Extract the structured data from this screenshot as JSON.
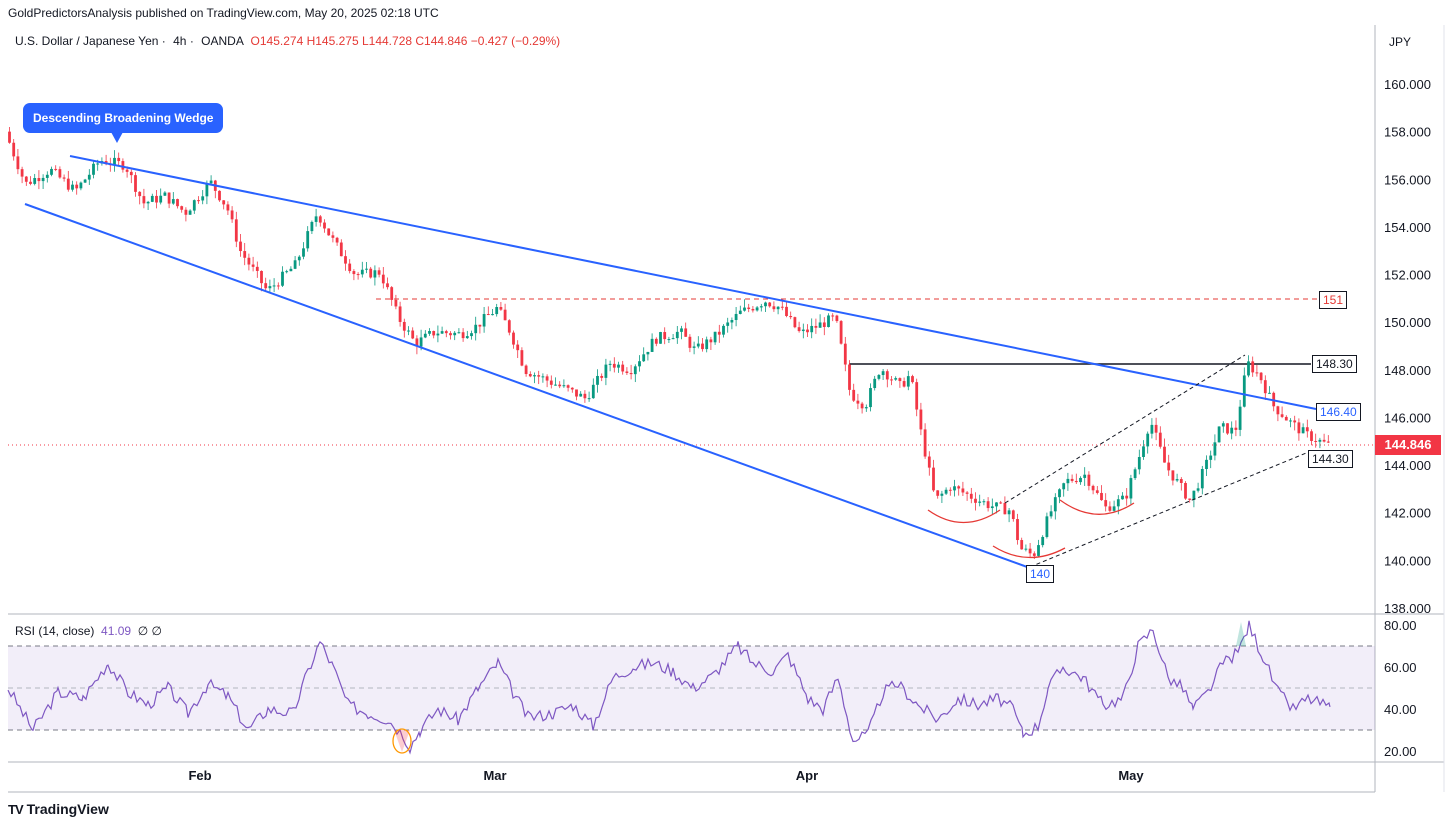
{
  "header": {
    "text": "GoldPredictorsAnalysis published on TradingView.com, May 20, 2025 02:18 UTC"
  },
  "symbol": {
    "name": "U.S. Dollar / Japanese Yen",
    "interval": "4h",
    "exchange": "OANDA",
    "open": "O145.274",
    "high": "H145.275",
    "low": "L144.728",
    "close": "C144.846",
    "change": "−0.427 (−0.29%)"
  },
  "currency": "JPY",
  "current_price": "144.846",
  "annotations": {
    "callout": "Descending Broadening Wedge",
    "level_151": "151",
    "level_148": "148.30",
    "level_146": "146.40",
    "level_144": "144.30",
    "level_140": "140"
  },
  "rsi": {
    "title": "RSI (14, close)",
    "value": "41.09",
    "extra": "∅ ∅"
  },
  "footer": {
    "logo": "TV",
    "brand": "TradingView"
  },
  "colors": {
    "up": "#089981",
    "down": "#f23645",
    "wedge": "#2962ff",
    "rsi_line": "#7e57c2",
    "resistance": "#e53935"
  },
  "chart_data": [
    {
      "type": "candlestick",
      "title": "U.S. Dollar / Japanese Yen · 4h · OANDA",
      "y_axis_ticks": [
        "138.000",
        "140.000",
        "142.000",
        "144.000",
        "146.000",
        "148.000",
        "150.000",
        "152.000",
        "154.000",
        "156.000",
        "158.000",
        "160.000"
      ],
      "x_axis_ticks": [
        "Feb",
        "Mar",
        "Apr",
        "May"
      ],
      "ylim": [
        137.9,
        161.5
      ],
      "price_path": [
        [
          0,
          158.0
        ],
        [
          20,
          155.8
        ],
        [
          45,
          156.4
        ],
        [
          70,
          155.5
        ],
        [
          95,
          156.8
        ],
        [
          120,
          156.6
        ],
        [
          138,
          155.0
        ],
        [
          160,
          155.3
        ],
        [
          180,
          154.6
        ],
        [
          205,
          155.9
        ],
        [
          222,
          154.8
        ],
        [
          235,
          153.0
        ],
        [
          262,
          151.3
        ],
        [
          290,
          152.4
        ],
        [
          312,
          154.6
        ],
        [
          325,
          153.6
        ],
        [
          350,
          152.0
        ],
        [
          375,
          152.1
        ],
        [
          393,
          150.2
        ],
        [
          410,
          149.1
        ],
        [
          430,
          149.6
        ],
        [
          455,
          149.5
        ],
        [
          470,
          149.8
        ],
        [
          492,
          150.6
        ],
        [
          505,
          149.6
        ],
        [
          520,
          148.0
        ],
        [
          550,
          147.4
        ],
        [
          580,
          146.8
        ],
        [
          605,
          148.3
        ],
        [
          625,
          148.0
        ],
        [
          650,
          149.3
        ],
        [
          675,
          149.6
        ],
        [
          690,
          148.8
        ],
        [
          710,
          149.4
        ],
        [
          735,
          150.4
        ],
        [
          760,
          150.9
        ],
        [
          775,
          150.6
        ],
        [
          795,
          149.5
        ],
        [
          815,
          149.9
        ],
        [
          830,
          150.2
        ],
        [
          845,
          147.0
        ],
        [
          860,
          146.5
        ],
        [
          875,
          148.1
        ],
        [
          895,
          147.3
        ],
        [
          905,
          147.8
        ],
        [
          915,
          145.5
        ],
        [
          930,
          142.5
        ],
        [
          945,
          143.1
        ],
        [
          965,
          142.7
        ],
        [
          985,
          142.3
        ],
        [
          1005,
          142.1
        ],
        [
          1015,
          140.5
        ],
        [
          1028,
          140.2
        ],
        [
          1045,
          142.0
        ],
        [
          1060,
          143.3
        ],
        [
          1080,
          143.6
        ],
        [
          1100,
          142.2
        ],
        [
          1120,
          142.6
        ],
        [
          1135,
          144.5
        ],
        [
          1145,
          145.9
        ],
        [
          1160,
          144.0
        ],
        [
          1185,
          142.5
        ],
        [
          1200,
          143.9
        ],
        [
          1215,
          145.6
        ],
        [
          1230,
          145.4
        ],
        [
          1242,
          148.3
        ],
        [
          1255,
          147.7
        ],
        [
          1268,
          146.5
        ],
        [
          1285,
          145.8
        ],
        [
          1300,
          145.3
        ],
        [
          1322,
          144.85
        ]
      ],
      "support_level": 140,
      "resistance_levels": [
        151,
        148.3
      ],
      "trend_values": [
        146.4,
        144.3
      ]
    },
    {
      "type": "line",
      "title": "RSI (14, close)",
      "y_axis_ticks": [
        "20.00",
        "40.00",
        "60.00",
        "80.00"
      ],
      "levels": [
        30,
        50,
        70
      ],
      "ylim": [
        15,
        83
      ],
      "rsi_path": [
        [
          0,
          50
        ],
        [
          25,
          30
        ],
        [
          50,
          48
        ],
        [
          75,
          45
        ],
        [
          100,
          62
        ],
        [
          120,
          48
        ],
        [
          140,
          42
        ],
        [
          160,
          50
        ],
        [
          180,
          38
        ],
        [
          200,
          52
        ],
        [
          220,
          46
        ],
        [
          240,
          30
        ],
        [
          260,
          40
        ],
        [
          285,
          38
        ],
        [
          300,
          58
        ],
        [
          312,
          72
        ],
        [
          325,
          60
        ],
        [
          340,
          42
        ],
        [
          360,
          38
        ],
        [
          380,
          35
        ],
        [
          395,
          28
        ],
        [
          402,
          22
        ],
        [
          412,
          30
        ],
        [
          430,
          40
        ],
        [
          450,
          35
        ],
        [
          470,
          50
        ],
        [
          490,
          62
        ],
        [
          505,
          48
        ],
        [
          520,
          36
        ],
        [
          545,
          38
        ],
        [
          565,
          42
        ],
        [
          585,
          32
        ],
        [
          605,
          55
        ],
        [
          625,
          60
        ],
        [
          645,
          62
        ],
        [
          665,
          58
        ],
        [
          685,
          50
        ],
        [
          705,
          56
        ],
        [
          730,
          70
        ],
        [
          745,
          62
        ],
        [
          765,
          58
        ],
        [
          780,
          66
        ],
        [
          800,
          45
        ],
        [
          815,
          40
        ],
        [
          830,
          55
        ],
        [
          845,
          25
        ],
        [
          860,
          28
        ],
        [
          875,
          48
        ],
        [
          890,
          52
        ],
        [
          910,
          42
        ],
        [
          930,
          35
        ],
        [
          950,
          45
        ],
        [
          970,
          42
        ],
        [
          990,
          45
        ],
        [
          1005,
          40
        ],
        [
          1015,
          28
        ],
        [
          1030,
          32
        ],
        [
          1040,
          50
        ],
        [
          1055,
          60
        ],
        [
          1075,
          55
        ],
        [
          1095,
          42
        ],
        [
          1115,
          45
        ],
        [
          1130,
          70
        ],
        [
          1145,
          78
        ],
        [
          1160,
          55
        ],
        [
          1175,
          50
        ],
        [
          1185,
          40
        ],
        [
          1200,
          48
        ],
        [
          1215,
          62
        ],
        [
          1230,
          67
        ],
        [
          1241,
          80
        ],
        [
          1255,
          65
        ],
        [
          1270,
          48
        ],
        [
          1285,
          40
        ],
        [
          1300,
          45
        ],
        [
          1322,
          41
        ]
      ]
    }
  ]
}
